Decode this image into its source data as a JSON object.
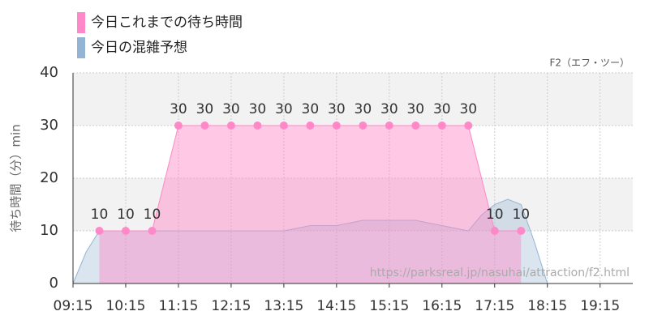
{
  "chart_data": {
    "type": "area-line",
    "subtitle": "F2（エフ・ツー）",
    "y_label": "待ち時間（分）min",
    "annotation": "https://parksreal.jp/nasuhai/attraction/f2.html",
    "xlim": [
      9.25,
      19.87
    ],
    "xticks": [
      {
        "value": 9.25,
        "label": "09:15"
      },
      {
        "value": 10.25,
        "label": "10:15"
      },
      {
        "value": 11.25,
        "label": "11:15"
      },
      {
        "value": 12.25,
        "label": "12:15"
      },
      {
        "value": 13.25,
        "label": "13:15"
      },
      {
        "value": 14.25,
        "label": "14:15"
      },
      {
        "value": 15.25,
        "label": "15:15"
      },
      {
        "value": 16.25,
        "label": "16:15"
      },
      {
        "value": 17.25,
        "label": "17:15"
      },
      {
        "value": 18.25,
        "label": "18:15"
      },
      {
        "value": 19.25,
        "label": "19:15"
      }
    ],
    "ylim": [
      0,
      40
    ],
    "yticks": [
      0,
      10,
      20,
      30,
      40
    ],
    "grid": true,
    "series": [
      {
        "name": "今日これまでの待ち時間",
        "color": "#ff88c8",
        "x": [
          9.75,
          10.25,
          10.75,
          11.25,
          11.75,
          12.25,
          12.75,
          13.25,
          13.75,
          14.25,
          14.75,
          15.25,
          15.75,
          16.25,
          16.75,
          17.25,
          17.75
        ],
        "values": [
          10,
          10,
          10,
          30,
          30,
          30,
          30,
          30,
          30,
          30,
          30,
          30,
          30,
          30,
          30,
          10,
          10
        ]
      },
      {
        "name": "今日の混雑予想",
        "color": "#94b4d4",
        "x": [
          9.25,
          9.5,
          9.75,
          10.25,
          10.75,
          11.25,
          12.25,
          13.25,
          13.75,
          14.25,
          14.75,
          15.25,
          15.75,
          16.25,
          16.75,
          17.0,
          17.25,
          17.5,
          17.75,
          18.0,
          18.25,
          19.87
        ],
        "values": [
          0,
          6,
          10,
          10,
          10,
          10,
          10,
          10,
          11,
          11,
          12,
          12,
          12,
          11,
          10,
          13,
          15,
          16,
          15,
          8,
          0,
          0
        ]
      }
    ]
  }
}
